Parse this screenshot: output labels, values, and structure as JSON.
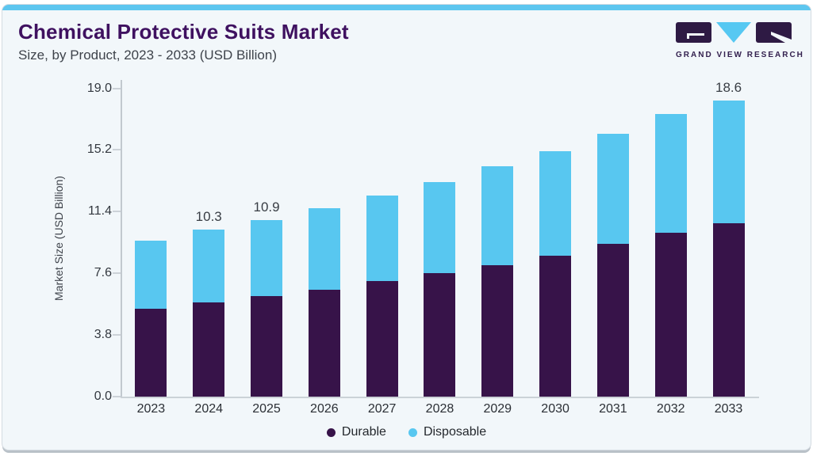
{
  "page": {
    "title": "Chemical Protective Suits Market",
    "subtitle": "Size, by Product, 2023 - 2033 (USD Billion)"
  },
  "logo": {
    "name": "Grand View Research",
    "caption": "GRAND VIEW RESEARCH"
  },
  "colors": {
    "accent_blue": "#5dc6ef",
    "bar_purple": "#371349",
    "bar_blue": "#58c7f0",
    "title_purple": "#3f1160",
    "card_background": "#f2f7fa"
  },
  "chart_data": {
    "type": "bar",
    "stacked": true,
    "title": "Chemical Protective Suits Market",
    "subtitle": "Size, by Product, 2023 - 2033 (USD Billion)",
    "xlabel": "",
    "ylabel": "Market Size (USD Billion)",
    "ylim": [
      0,
      19
    ],
    "ytick_values": [
      0,
      3.8,
      7.6,
      11.4,
      15.2,
      19.0
    ],
    "ytick_labels": [
      "0.0",
      "3.8",
      "7.6",
      "11.4",
      "15.2",
      "19.0"
    ],
    "grid": false,
    "legend_position": "bottom",
    "categories": [
      "2023",
      "2024",
      "2025",
      "2026",
      "2027",
      "2028",
      "2029",
      "2030",
      "2031",
      "2032",
      "2033"
    ],
    "series": [
      {
        "name": "Durable",
        "color": "#371349",
        "values": [
          5.4,
          5.8,
          6.2,
          6.6,
          7.1,
          7.6,
          8.1,
          8.7,
          9.4,
          10.1,
          10.9
        ]
      },
      {
        "name": "Disposable",
        "color": "#58c7f0",
        "values": [
          4.2,
          4.5,
          4.7,
          5.0,
          5.3,
          5.6,
          6.1,
          6.4,
          6.8,
          7.3,
          7.7
        ]
      }
    ],
    "totals": [
      9.6,
      10.3,
      10.9,
      11.6,
      12.4,
      13.2,
      14.2,
      15.1,
      16.2,
      17.4,
      18.6
    ],
    "bar_total_labels": [
      "",
      "10.3",
      "10.9",
      "",
      "",
      "",
      "",
      "",
      "",
      "",
      "18.6"
    ]
  }
}
